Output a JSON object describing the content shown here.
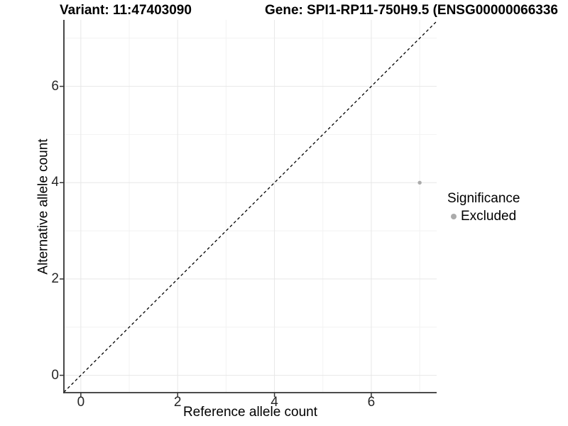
{
  "titles": {
    "variant": "Variant: 11:47403090",
    "gene": "Gene: SPI1-RP11-750H9.5 (ENSG00000066336"
  },
  "axes": {
    "x": {
      "label": "Reference allele count"
    },
    "y": {
      "label": "Alternative allele count"
    }
  },
  "legend": {
    "title": "Significance",
    "items": [
      {
        "label": "Excluded",
        "color": "#ababab"
      }
    ]
  },
  "colors": {
    "background": "#ffffff",
    "grid_major": "#e7e7e7",
    "grid_minor": "#f2f2f2",
    "axis_line": "#333333",
    "tick_mark": "#333333",
    "identity_line": "#000000",
    "point": "#ababab",
    "title_text": "#000000",
    "tick_text": "#262626"
  },
  "chart_data": {
    "type": "scatter",
    "title": "Variant: 11:47403090 / Gene: SPI1-RP11-750H9.5 (ENSG00000066336",
    "xlabel": "Reference allele count",
    "ylabel": "Alternative allele count",
    "xlim": [
      -0.35,
      7.35
    ],
    "ylim": [
      -0.36,
      7.38
    ],
    "x_ticks": [
      0,
      2,
      4,
      6
    ],
    "y_ticks": [
      0,
      2,
      4,
      6
    ],
    "x_minor_ticks": [
      1,
      3,
      5,
      7
    ],
    "y_minor_ticks": [
      1,
      3,
      5,
      7
    ],
    "grid": true,
    "legend_position": "right",
    "series": [
      {
        "name": "Excluded",
        "color": "#ababab",
        "point_radius": 2.7,
        "points": [
          [
            7,
            4
          ]
        ]
      }
    ],
    "reference_line": {
      "kind": "identity",
      "equation": "y = x",
      "style": "dashed",
      "color": "#000000"
    }
  }
}
